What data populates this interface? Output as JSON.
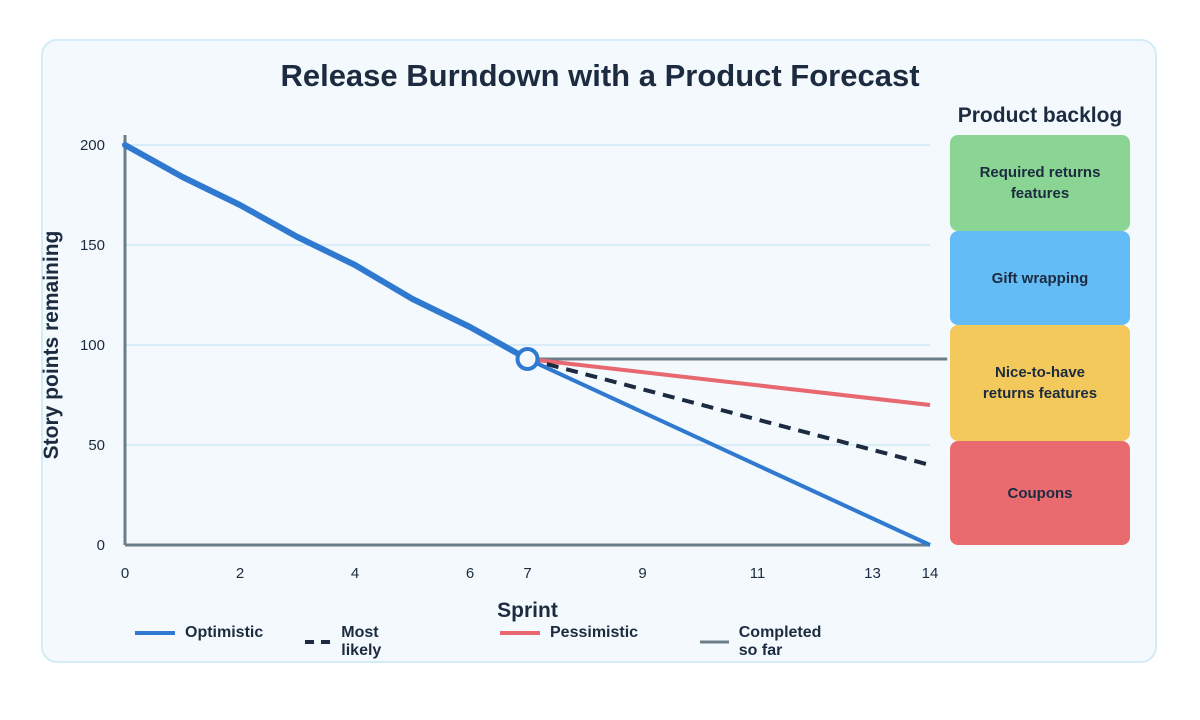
{
  "chart_data": {
    "type": "line",
    "title": "Release Burndown with a Product Forecast",
    "xlabel": "Sprint",
    "ylabel": "Story points remaining",
    "xlim": [
      0,
      14
    ],
    "ylim": [
      0,
      205
    ],
    "x_ticks": [
      0,
      2,
      4,
      6,
      7,
      9,
      11,
      13,
      14
    ],
    "y_ticks": [
      0,
      50,
      100,
      150,
      200
    ],
    "grid": "horizontal",
    "legend_position": "bottom",
    "series": [
      {
        "name": "Optimistic",
        "color": "#2f7ad0",
        "style": "solid",
        "points": [
          [
            0,
            200
          ],
          [
            1,
            184
          ],
          [
            2,
            170
          ],
          [
            3,
            154
          ],
          [
            4,
            140
          ],
          [
            5,
            123
          ],
          [
            6,
            109
          ],
          [
            7,
            93
          ],
          [
            14,
            0
          ]
        ]
      },
      {
        "name": "Most likely",
        "color": "#1c2b40",
        "style": "dashed",
        "points": [
          [
            7,
            93
          ],
          [
            14,
            40
          ]
        ]
      },
      {
        "name": "Pessimistic",
        "color": "#e8686f",
        "style": "solid",
        "points": [
          [
            7,
            93
          ],
          [
            14,
            70
          ]
        ]
      },
      {
        "name": "Completed so far",
        "color": "#6c7d8a",
        "style": "solid",
        "points": [
          [
            7,
            93
          ],
          [
            14.3,
            93
          ]
        ]
      }
    ],
    "marker": {
      "x": 7,
      "y": 93
    }
  },
  "backlog": {
    "title": "Product backlog",
    "items": [
      {
        "label": "Required returns features",
        "color": "#8ad594",
        "y_top": 205,
        "y_bottom": 157
      },
      {
        "label": "Gift wrapping",
        "color": "#64bcf6",
        "y_top": 157,
        "y_bottom": 110
      },
      {
        "label": "Nice-to-have returns features",
        "color": "#f3c95c",
        "y_top": 110,
        "y_bottom": 52
      },
      {
        "label": "Coupons",
        "color": "#e96b70",
        "y_top": 52,
        "y_bottom": 0
      }
    ]
  }
}
